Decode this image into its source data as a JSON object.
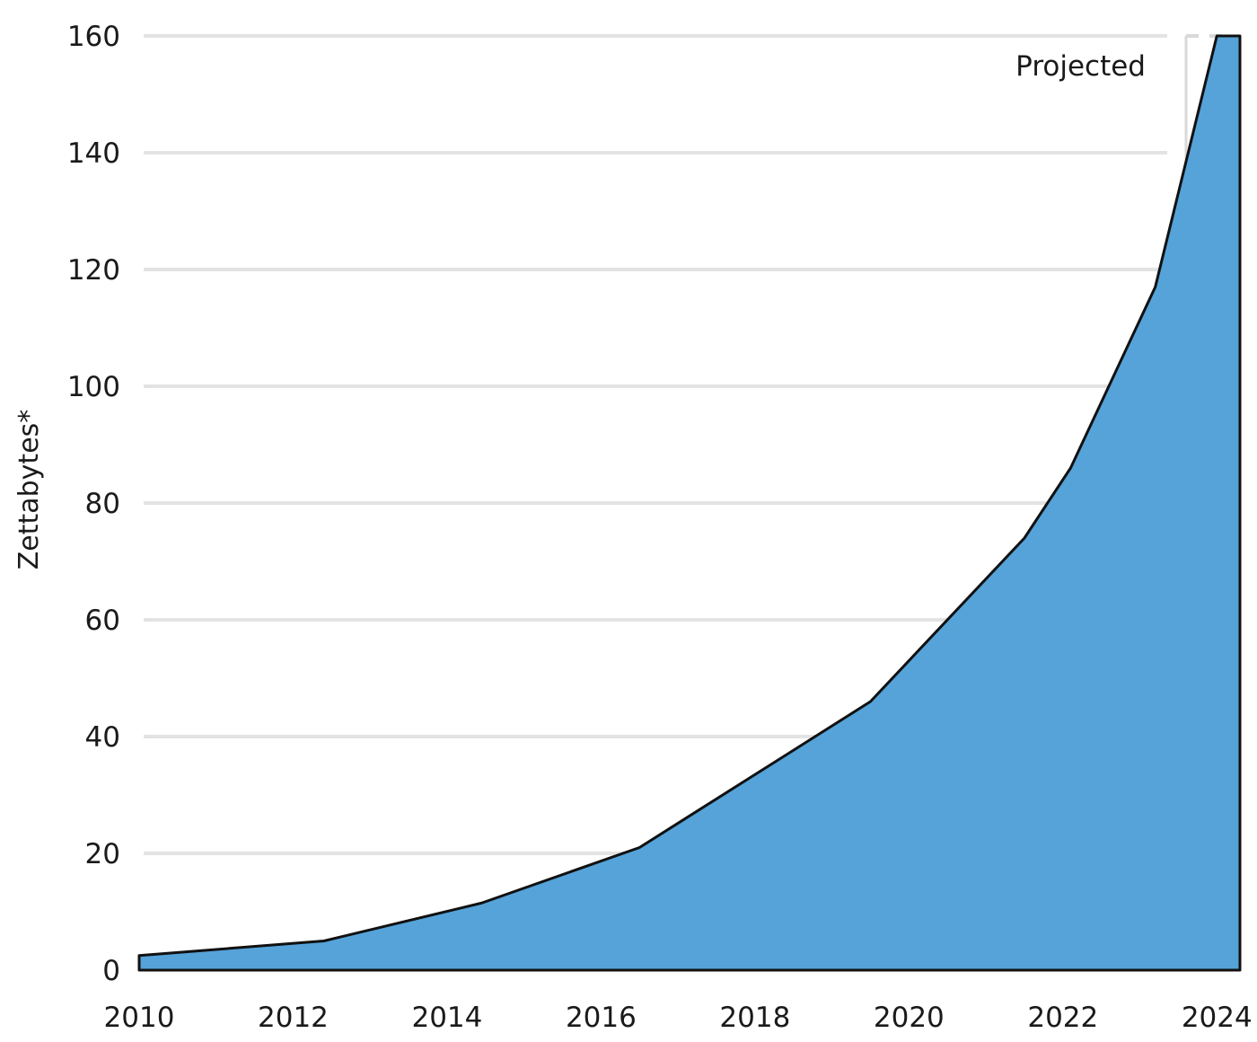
{
  "chart_data": {
    "type": "area",
    "title": "",
    "xlabel": "",
    "ylabel": "Zettabytes*",
    "x": [
      2010.0,
      2012.4,
      2014.45,
      2016.5,
      2019.5,
      2021.5,
      2022.1,
      2023.2,
      2024.0
    ],
    "series": [
      {
        "values": [
          2.5,
          5.0,
          11.5,
          21.0,
          46.0,
          74.0,
          86.0,
          117.0,
          160.0
        ],
        "color": "#55a3d9"
      }
    ],
    "xlim": [
      2010,
      2024.3
    ],
    "ylim": [
      0,
      160
    ],
    "x_ticks": [
      "2010",
      "2012",
      "2014",
      "2016",
      "2018",
      "2020",
      "2022",
      "2024"
    ],
    "y_ticks": [
      "0",
      "20",
      "40",
      "60",
      "80",
      "100",
      "120",
      "140",
      "160"
    ],
    "grid": "horizontal",
    "projection_start": 2023.6,
    "annotation": "Projected"
  }
}
